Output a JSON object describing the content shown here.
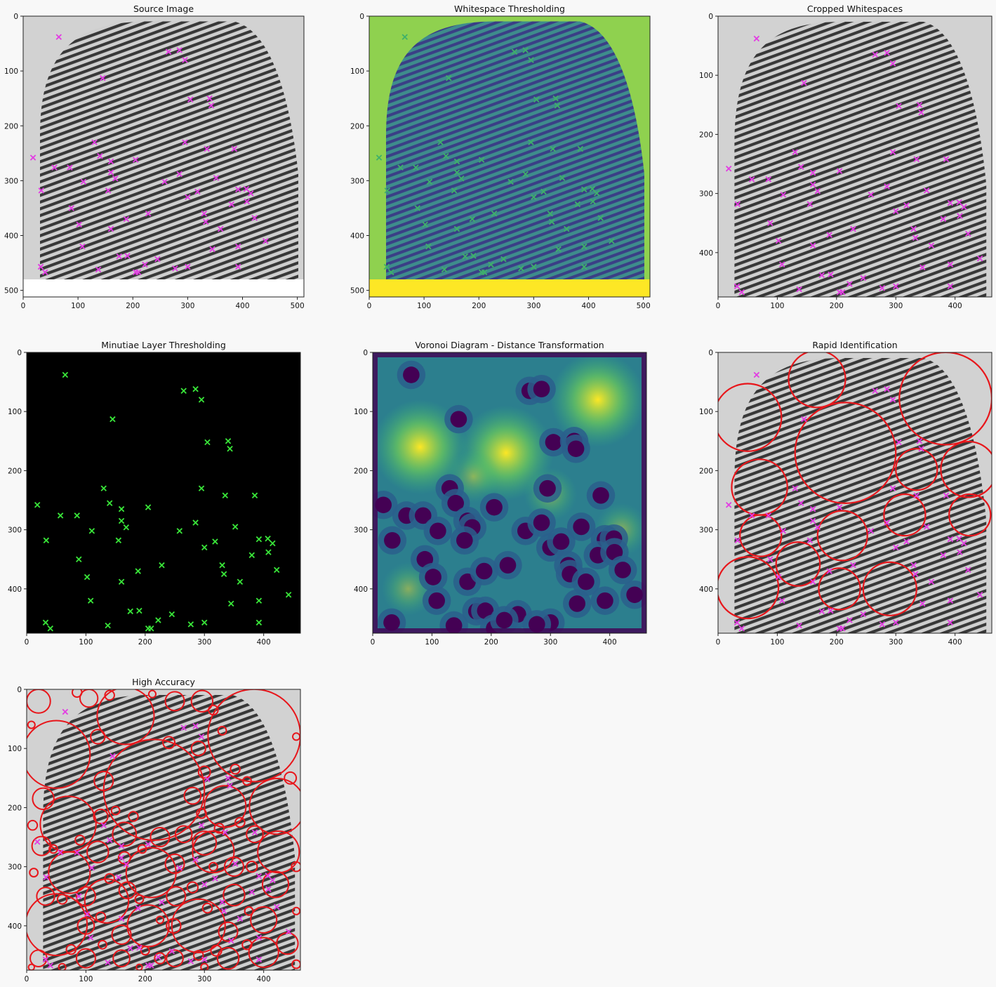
{
  "figure": {
    "panels": [
      {
        "title": "Source Image",
        "image": "fingerprint-grayscale",
        "image_extent": {
          "x": [
            0,
            512
          ],
          "y": [
            0,
            480
          ]
        },
        "xlim": [
          0,
          512
        ],
        "ylim": [
          512,
          0
        ],
        "xticks": [
          0,
          100,
          200,
          300,
          400,
          500
        ],
        "yticks": [
          0,
          100,
          200,
          300,
          400,
          500
        ],
        "marker": "magenta-x"
      },
      {
        "title": "Whitespace Thresholding",
        "image": "fingerprint-viridis",
        "image_extent": {
          "x": [
            0,
            512
          ],
          "y": [
            0,
            480
          ]
        },
        "xlim": [
          0,
          512
        ],
        "ylim": [
          512,
          0
        ],
        "xticks": [
          0,
          100,
          200,
          300,
          400,
          500
        ],
        "yticks": [
          0,
          100,
          200,
          300,
          400,
          500
        ],
        "marker": "green-x"
      },
      {
        "title": "Cropped Whitespaces",
        "image": "fingerprint-grayscale",
        "xlim": [
          0,
          462
        ],
        "ylim": [
          475,
          0
        ],
        "xticks": [
          0,
          100,
          200,
          300,
          400
        ],
        "yticks": [
          0,
          100,
          200,
          300,
          400
        ],
        "marker": "magenta-x"
      },
      {
        "title": "Minutiae Layer Thresholding",
        "image": "black-background",
        "xlim": [
          0,
          462
        ],
        "ylim": [
          475,
          0
        ],
        "xticks": [
          0,
          100,
          200,
          300,
          400
        ],
        "yticks": [
          0,
          100,
          200,
          300,
          400
        ],
        "marker": "green-x"
      },
      {
        "title": "Voronoi Diagram - Distance Transformation",
        "image": "distance-transform-viridis",
        "xlim": [
          0,
          462
        ],
        "ylim": [
          475,
          0
        ],
        "xticks": [
          0,
          100,
          200,
          300,
          400
        ],
        "yticks": [
          0,
          100,
          200,
          300,
          400
        ],
        "marker": "none"
      },
      {
        "title": "Rapid Identification",
        "image": "fingerprint-grayscale",
        "xlim": [
          0,
          462
        ],
        "ylim": [
          475,
          0
        ],
        "xticks": [
          0,
          100,
          200,
          300,
          400
        ],
        "yticks": [
          0,
          100,
          200,
          300,
          400
        ],
        "marker": "magenta-x",
        "circles": "rapid"
      },
      {
        "title": "High Accuracy",
        "image": "fingerprint-grayscale",
        "xlim": [
          0,
          462
        ],
        "ylim": [
          475,
          0
        ],
        "xticks": [
          0,
          100,
          200,
          300,
          400
        ],
        "yticks": [
          0,
          100,
          200,
          300,
          400
        ],
        "marker": "magenta-x",
        "circles": "dense"
      }
    ],
    "minutiae": [
      [
        65,
        38
      ],
      [
        145,
        113
      ],
      [
        265,
        65
      ],
      [
        285,
        62
      ],
      [
        295,
        80
      ],
      [
        305,
        152
      ],
      [
        340,
        150
      ],
      [
        343,
        163
      ],
      [
        130,
        230
      ],
      [
        295,
        230
      ],
      [
        335,
        242
      ],
      [
        385,
        242
      ],
      [
        18,
        258
      ],
      [
        140,
        255
      ],
      [
        160,
        265
      ],
      [
        205,
        262
      ],
      [
        57,
        276
      ],
      [
        85,
        276
      ],
      [
        160,
        285
      ],
      [
        168,
        296
      ],
      [
        110,
        302
      ],
      [
        258,
        302
      ],
      [
        285,
        288
      ],
      [
        352,
        295
      ],
      [
        33,
        318
      ],
      [
        155,
        318
      ],
      [
        300,
        330
      ],
      [
        318,
        320
      ],
      [
        392,
        316
      ],
      [
        407,
        315
      ],
      [
        415,
        323
      ],
      [
        88,
        350
      ],
      [
        380,
        343
      ],
      [
        408,
        338
      ],
      [
        102,
        380
      ],
      [
        160,
        388
      ],
      [
        188,
        370
      ],
      [
        228,
        360
      ],
      [
        330,
        360
      ],
      [
        333,
        375
      ],
      [
        360,
        388
      ],
      [
        422,
        368
      ],
      [
        108,
        420
      ],
      [
        175,
        438
      ],
      [
        190,
        437
      ],
      [
        245,
        443
      ],
      [
        300,
        457
      ],
      [
        345,
        425
      ],
      [
        392,
        420
      ],
      [
        442,
        410
      ],
      [
        32,
        457
      ],
      [
        40,
        467
      ],
      [
        137,
        462
      ],
      [
        205,
        467
      ],
      [
        210,
        467
      ],
      [
        222,
        453
      ],
      [
        277,
        460
      ],
      [
        392,
        457
      ]
    ],
    "distance_centres": [
      [
        65,
        38
      ],
      [
        145,
        113
      ],
      [
        265,
        65
      ],
      [
        285,
        62
      ],
      [
        305,
        152
      ],
      [
        340,
        150
      ],
      [
        343,
        163
      ],
      [
        130,
        230
      ],
      [
        295,
        230
      ],
      [
        385,
        242
      ],
      [
        18,
        258
      ],
      [
        140,
        255
      ],
      [
        205,
        262
      ],
      [
        57,
        276
      ],
      [
        85,
        276
      ],
      [
        160,
        285
      ],
      [
        168,
        296
      ],
      [
        110,
        302
      ],
      [
        258,
        302
      ],
      [
        285,
        288
      ],
      [
        352,
        295
      ],
      [
        33,
        318
      ],
      [
        155,
        318
      ],
      [
        300,
        330
      ],
      [
        318,
        320
      ],
      [
        392,
        316
      ],
      [
        407,
        315
      ],
      [
        88,
        350
      ],
      [
        380,
        343
      ],
      [
        408,
        338
      ],
      [
        102,
        380
      ],
      [
        160,
        388
      ],
      [
        188,
        370
      ],
      [
        228,
        360
      ],
      [
        330,
        360
      ],
      [
        333,
        375
      ],
      [
        360,
        388
      ],
      [
        422,
        368
      ],
      [
        108,
        420
      ],
      [
        175,
        438
      ],
      [
        190,
        437
      ],
      [
        245,
        443
      ],
      [
        300,
        457
      ],
      [
        345,
        425
      ],
      [
        392,
        420
      ],
      [
        442,
        410
      ],
      [
        32,
        457
      ],
      [
        137,
        462
      ],
      [
        205,
        467
      ],
      [
        222,
        453
      ],
      [
        277,
        460
      ]
    ],
    "rapid_circles": [
      [
        50,
        110,
        57
      ],
      [
        167,
        45,
        48
      ],
      [
        215,
        170,
        85
      ],
      [
        384,
        78,
        78
      ],
      [
        70,
        228,
        47
      ],
      [
        335,
        198,
        35
      ],
      [
        423,
        198,
        47
      ],
      [
        315,
        275,
        35
      ],
      [
        425,
        275,
        35
      ],
      [
        72,
        310,
        35
      ],
      [
        210,
        310,
        42
      ],
      [
        135,
        358,
        37
      ],
      [
        50,
        398,
        52
      ],
      [
        205,
        400,
        35
      ],
      [
        290,
        400,
        45
      ]
    ],
    "dense_circles": [
      [
        50,
        110,
        57
      ],
      [
        167,
        45,
        48
      ],
      [
        215,
        170,
        85
      ],
      [
        384,
        78,
        78
      ],
      [
        70,
        228,
        47
      ],
      [
        335,
        198,
        35
      ],
      [
        423,
        198,
        47
      ],
      [
        315,
        275,
        35
      ],
      [
        425,
        275,
        35
      ],
      [
        72,
        310,
        35
      ],
      [
        210,
        310,
        42
      ],
      [
        135,
        358,
        37
      ],
      [
        50,
        398,
        52
      ],
      [
        205,
        400,
        35
      ],
      [
        290,
        400,
        45
      ],
      [
        20,
        20,
        20
      ],
      [
        105,
        15,
        15
      ],
      [
        250,
        20,
        16
      ],
      [
        296,
        20,
        18
      ],
      [
        120,
        80,
        12
      ],
      [
        240,
        90,
        10
      ],
      [
        290,
        100,
        12
      ],
      [
        130,
        155,
        16
      ],
      [
        280,
        180,
        14
      ],
      [
        300,
        140,
        10
      ],
      [
        28,
        185,
        18
      ],
      [
        125,
        215,
        12
      ],
      [
        165,
        245,
        20
      ],
      [
        225,
        250,
        16
      ],
      [
        265,
        245,
        14
      ],
      [
        300,
        260,
        20
      ],
      [
        385,
        245,
        14
      ],
      [
        25,
        265,
        16
      ],
      [
        120,
        275,
        18
      ],
      [
        165,
        285,
        10
      ],
      [
        250,
        295,
        16
      ],
      [
        350,
        300,
        16
      ],
      [
        32,
        350,
        15
      ],
      [
        100,
        350,
        16
      ],
      [
        170,
        340,
        14
      ],
      [
        252,
        350,
        16
      ],
      [
        350,
        348,
        18
      ],
      [
        420,
        330,
        22
      ],
      [
        100,
        400,
        14
      ],
      [
        160,
        415,
        16
      ],
      [
        248,
        400,
        12
      ],
      [
        340,
        410,
        16
      ],
      [
        400,
        390,
        22
      ],
      [
        440,
        430,
        18
      ],
      [
        100,
        455,
        16
      ],
      [
        160,
        455,
        14
      ],
      [
        250,
        455,
        14
      ],
      [
        340,
        455,
        18
      ],
      [
        400,
        445,
        25
      ],
      [
        20,
        455,
        14
      ],
      [
        8,
        60,
        6
      ],
      [
        85,
        5,
        8
      ],
      [
        140,
        10,
        8
      ],
      [
        212,
        8,
        6
      ],
      [
        315,
        35,
        8
      ],
      [
        330,
        70,
        7
      ],
      [
        352,
        135,
        8
      ],
      [
        372,
        155,
        7
      ],
      [
        445,
        150,
        10
      ],
      [
        455,
        80,
        6
      ],
      [
        150,
        205,
        7
      ],
      [
        180,
        215,
        8
      ],
      [
        295,
        210,
        8
      ],
      [
        325,
        235,
        8
      ],
      [
        360,
        225,
        8
      ],
      [
        10,
        230,
        8
      ],
      [
        45,
        270,
        7
      ],
      [
        90,
        255,
        8
      ],
      [
        140,
        320,
        8
      ],
      [
        195,
        270,
        7
      ],
      [
        280,
        335,
        9
      ],
      [
        315,
        300,
        7
      ],
      [
        380,
        300,
        9
      ],
      [
        455,
        300,
        8
      ],
      [
        12,
        310,
        7
      ],
      [
        60,
        355,
        8
      ],
      [
        125,
        385,
        8
      ],
      [
        190,
        355,
        7
      ],
      [
        225,
        390,
        6
      ],
      [
        305,
        370,
        8
      ],
      [
        375,
        375,
        7
      ],
      [
        455,
        375,
        6
      ],
      [
        75,
        440,
        8
      ],
      [
        128,
        432,
        7
      ],
      [
        200,
        442,
        7
      ],
      [
        225,
        455,
        9
      ],
      [
        290,
        450,
        8
      ],
      [
        320,
        442,
        9
      ],
      [
        372,
        432,
        8
      ],
      [
        8,
        470,
        5
      ],
      [
        60,
        470,
        6
      ],
      [
        190,
        470,
        5
      ],
      [
        300,
        470,
        6
      ],
      [
        455,
        465,
        7
      ]
    ]
  }
}
